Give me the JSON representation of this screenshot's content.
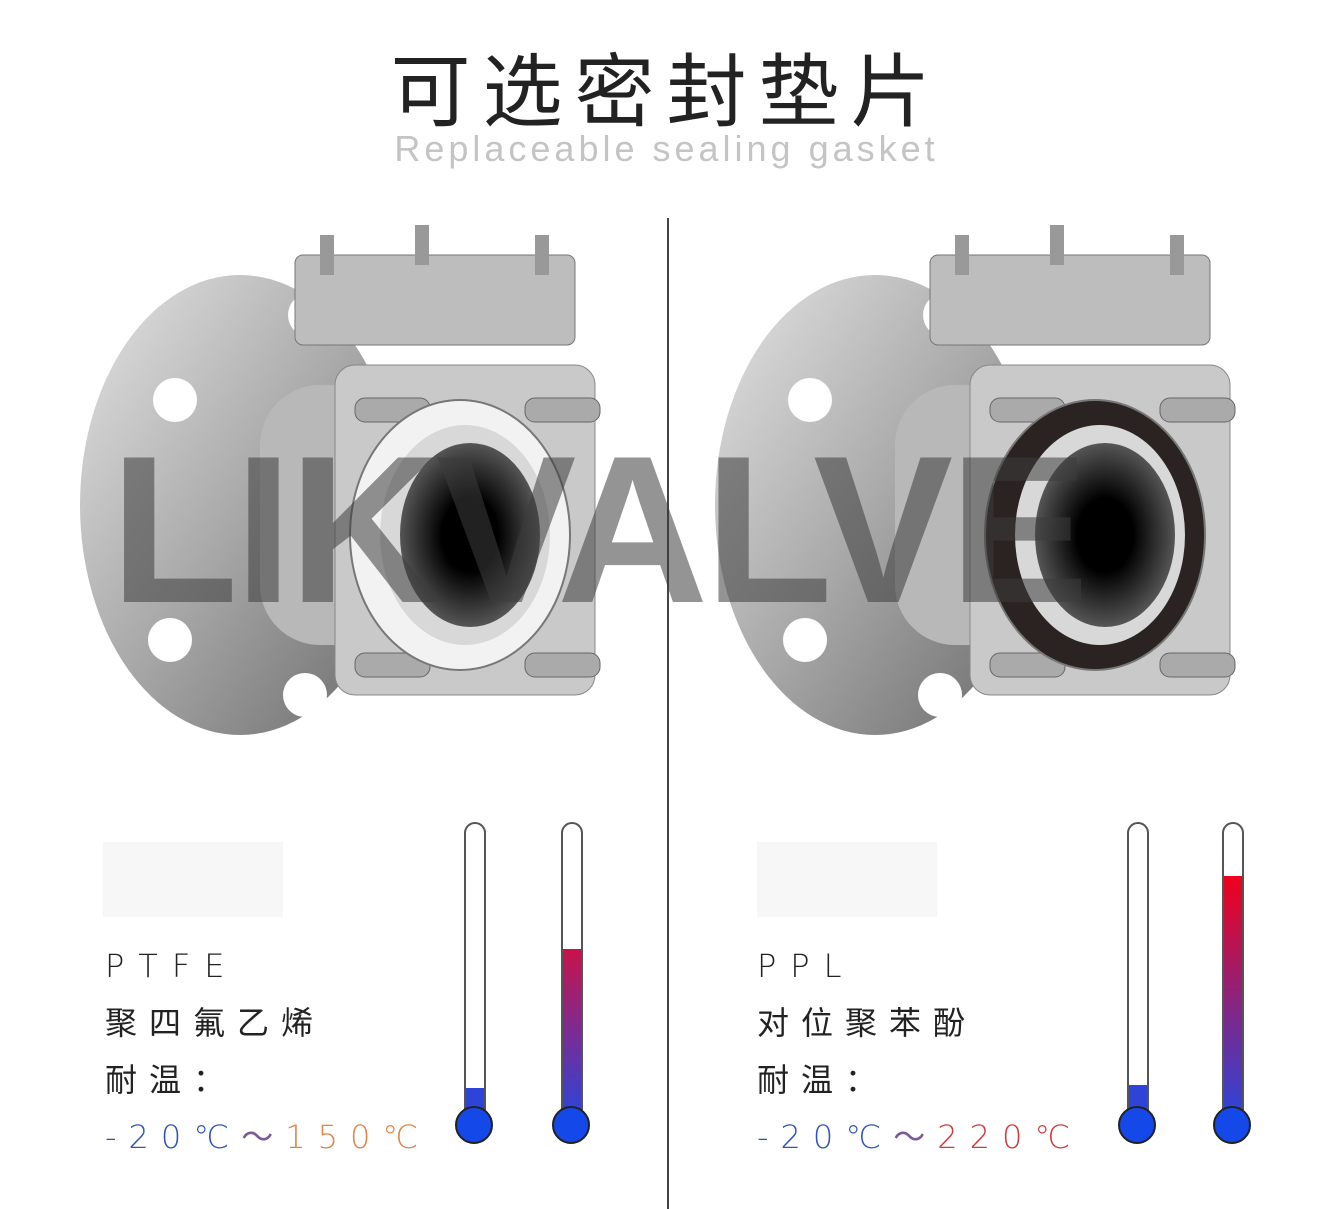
{
  "header": {
    "title": "可选密封垫片",
    "subtitle": "Replaceable sealing gasket"
  },
  "watermark": "LIKVALVE",
  "panels": [
    {
      "code": "PTFE",
      "name": "聚四氟乙烯",
      "temp_label": "耐温：",
      "temp_low": "-20℃",
      "tilde": "～",
      "temp_high": "150℃",
      "high_color": "#e0844a",
      "gasket_color": "#f2f2f2",
      "thermometers": [
        {
          "level": 0.09,
          "top_color": "#2e44d8"
        },
        {
          "level": 0.57,
          "top_color": "#c8124a"
        }
      ]
    },
    {
      "code": "PPL",
      "name": "对位聚苯酚",
      "temp_label": "耐温：",
      "temp_low": "-20℃",
      "tilde": "～",
      "temp_high": "220℃",
      "high_color": "#d23a3a",
      "gasket_color": "#2a2322",
      "thermometers": [
        {
          "level": 0.1,
          "top_color": "#2e44d8"
        },
        {
          "level": 0.82,
          "top_color": "#f0001c"
        }
      ]
    }
  ]
}
